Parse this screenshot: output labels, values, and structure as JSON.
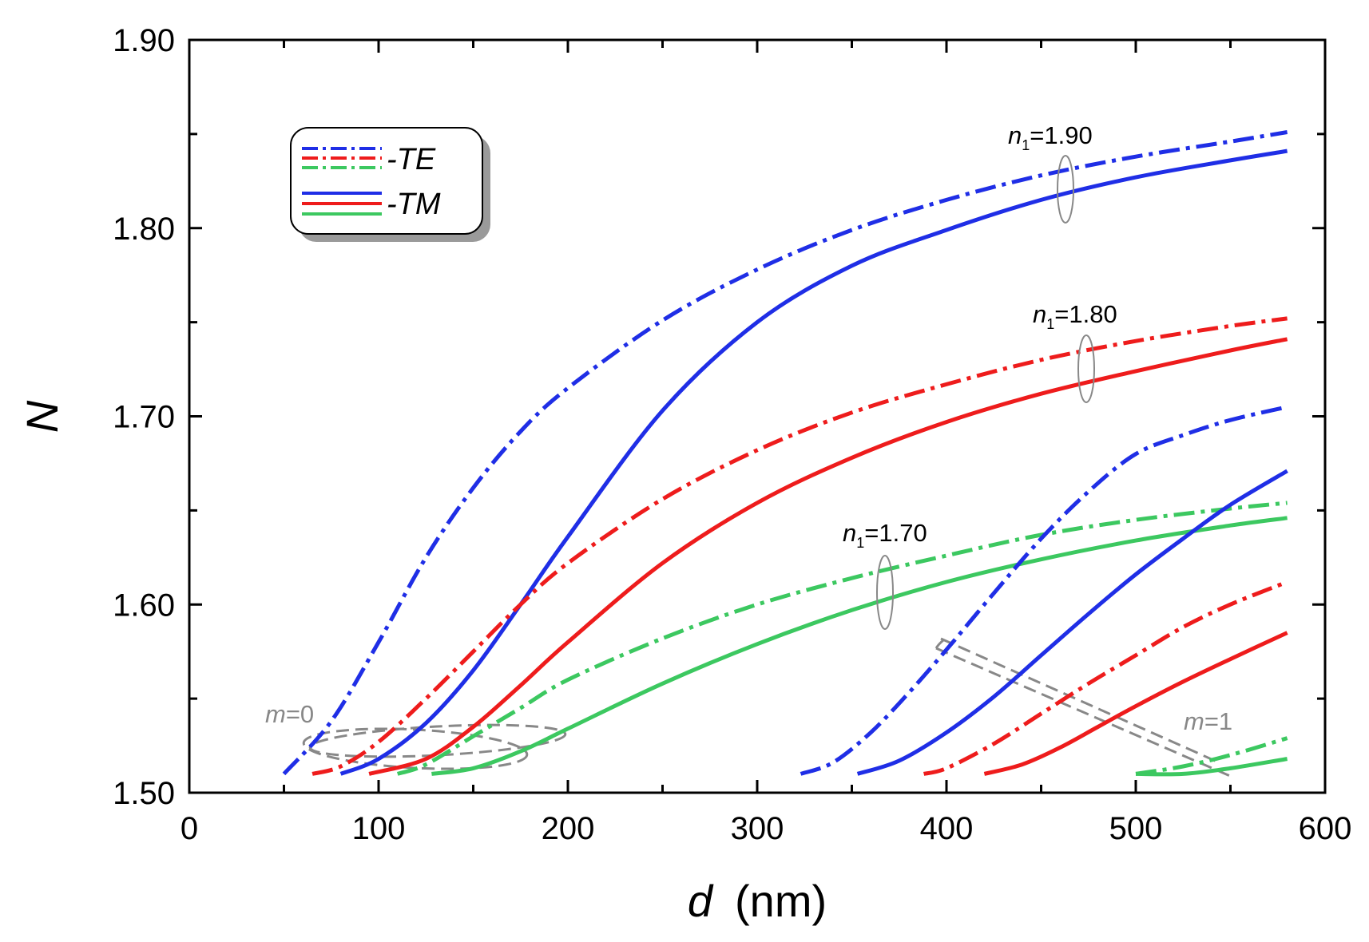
{
  "chart_data": {
    "type": "line",
    "title": "",
    "xlabel_var": "d",
    "xlabel_unit": "(nm)",
    "ylabel": "N",
    "xlim": [
      0,
      600
    ],
    "ylim": [
      1.5,
      1.9
    ],
    "xticks": [
      0,
      100,
      200,
      300,
      400,
      500,
      600
    ],
    "xtick_labels": [
      "0",
      "100",
      "200",
      "300",
      "400",
      "500",
      "600"
    ],
    "yticks": [
      1.5,
      1.6,
      1.7,
      1.8,
      1.9
    ],
    "ytick_labels": [
      "1.50",
      "1.60",
      "1.70",
      "1.80",
      "1.90"
    ],
    "grid": false,
    "legend": {
      "position": "top-left",
      "entries": [
        {
          "label": "-TE",
          "style": "dash-dot",
          "colors": [
            "#1f2ee6",
            "#ee1c1c",
            "#3cc860"
          ]
        },
        {
          "label": "-TM",
          "style": "solid",
          "colors": [
            "#1f2ee6",
            "#ee1c1c",
            "#3cc860"
          ]
        }
      ]
    },
    "colors": {
      "blue": "#1f2ee6",
      "red": "#ee1c1c",
      "green": "#3cc860",
      "annotation": "#888888"
    },
    "series": [
      {
        "name": "n1=1.90 TE m=0",
        "color": "blue",
        "style": "dash-dot",
        "x": [
          50,
          75,
          100,
          125,
          150,
          175,
          200,
          250,
          300,
          350,
          400,
          450,
          500,
          550,
          580
        ],
        "y": [
          1.51,
          1.538,
          1.58,
          1.625,
          1.662,
          1.692,
          1.715,
          1.751,
          1.778,
          1.799,
          1.815,
          1.828,
          1.838,
          1.846,
          1.851
        ]
      },
      {
        "name": "n1=1.90 TM m=0",
        "color": "blue",
        "style": "solid",
        "x": [
          80,
          100,
          125,
          150,
          175,
          200,
          250,
          300,
          350,
          400,
          450,
          500,
          550,
          580
        ],
        "y": [
          1.51,
          1.518,
          1.537,
          1.565,
          1.6,
          1.636,
          1.703,
          1.75,
          1.78,
          1.799,
          1.815,
          1.827,
          1.836,
          1.841
        ]
      },
      {
        "name": "n1=1.80 TE m=0",
        "color": "red",
        "style": "dash-dot",
        "x": [
          65,
          80,
          100,
          125,
          150,
          175,
          200,
          250,
          300,
          350,
          400,
          450,
          500,
          550,
          580
        ],
        "y": [
          1.51,
          1.514,
          1.527,
          1.55,
          1.575,
          1.6,
          1.622,
          1.656,
          1.682,
          1.702,
          1.717,
          1.73,
          1.74,
          1.748,
          1.752
        ]
      },
      {
        "name": "n1=1.80 TM m=0",
        "color": "red",
        "style": "solid",
        "x": [
          95,
          125,
          150,
          175,
          200,
          250,
          300,
          350,
          400,
          450,
          500,
          550,
          580
        ],
        "y": [
          1.51,
          1.518,
          1.535,
          1.557,
          1.58,
          1.622,
          1.654,
          1.678,
          1.697,
          1.712,
          1.724,
          1.735,
          1.741
        ]
      },
      {
        "name": "n1=1.70 TE m=0",
        "color": "green",
        "style": "dash-dot",
        "x": [
          110,
          125,
          150,
          175,
          200,
          250,
          300,
          350,
          400,
          450,
          500,
          550,
          580
        ],
        "y": [
          1.51,
          1.515,
          1.53,
          1.545,
          1.56,
          1.582,
          1.6,
          1.614,
          1.626,
          1.637,
          1.645,
          1.651,
          1.654
        ]
      },
      {
        "name": "n1=1.70 TM m=0",
        "color": "green",
        "style": "solid",
        "x": [
          128,
          150,
          175,
          200,
          250,
          300,
          350,
          400,
          450,
          500,
          550,
          580
        ],
        "y": [
          1.51,
          1.513,
          1.522,
          1.534,
          1.558,
          1.579,
          1.597,
          1.612,
          1.624,
          1.634,
          1.642,
          1.646
        ]
      },
      {
        "name": "n1=1.90 TE m=1",
        "color": "blue",
        "style": "dash-dot",
        "x": [
          323,
          340,
          360,
          380,
          400,
          425,
          450,
          475,
          500,
          525,
          550,
          580
        ],
        "y": [
          1.51,
          1.516,
          1.532,
          1.553,
          1.576,
          1.606,
          1.635,
          1.66,
          1.68,
          1.69,
          1.698,
          1.705
        ]
      },
      {
        "name": "n1=1.90 TM m=1",
        "color": "blue",
        "style": "solid",
        "x": [
          353,
          375,
          400,
          425,
          450,
          475,
          500,
          525,
          550,
          580
        ],
        "y": [
          1.51,
          1.517,
          1.532,
          1.551,
          1.573,
          1.595,
          1.616,
          1.635,
          1.653,
          1.671
        ]
      },
      {
        "name": "n1=1.80 TE m=1",
        "color": "red",
        "style": "dash-dot",
        "x": [
          388,
          400,
          425,
          450,
          475,
          500,
          525,
          550,
          580
        ],
        "y": [
          1.51,
          1.513,
          1.526,
          1.542,
          1.558,
          1.573,
          1.588,
          1.6,
          1.612
        ]
      },
      {
        "name": "n1=1.80 TM m=1",
        "color": "red",
        "style": "solid",
        "x": [
          420,
          440,
          460,
          480,
          500,
          525,
          550,
          580
        ],
        "y": [
          1.51,
          1.515,
          1.524,
          1.535,
          1.546,
          1.559,
          1.571,
          1.585
        ]
      },
      {
        "name": "n1=1.70 TE m=1",
        "color": "green",
        "style": "dash-dot",
        "x": [
          500,
          525,
          550,
          580
        ],
        "y": [
          1.51,
          1.514,
          1.52,
          1.529
        ]
      },
      {
        "name": "n1=1.70 TM m=1",
        "color": "green",
        "style": "solid",
        "x": [
          500,
          525,
          550,
          580
        ],
        "y": [
          1.51,
          1.51,
          1.513,
          1.518
        ]
      }
    ],
    "annotations": [
      {
        "sub": "1",
        "value": "=1.90",
        "x": 436,
        "y": 1.843,
        "ring_x": 463,
        "ring_y": 1.826
      },
      {
        "sub": "1",
        "value": "=1.80",
        "x": 450,
        "y": 1.746,
        "ring_x": 477,
        "ring_y": 1.729
      },
      {
        "sub": "1",
        "value": "=1.70",
        "x": 345,
        "y": 1.63,
        "ring_x": 368,
        "ring_y": 1.608
      }
    ],
    "mode_labels": [
      {
        "var": "m",
        "value": "=0",
        "x": 42,
        "y": 1.54
      },
      {
        "var": "m",
        "value": "=1",
        "x": 525,
        "y": 1.537
      }
    ]
  }
}
